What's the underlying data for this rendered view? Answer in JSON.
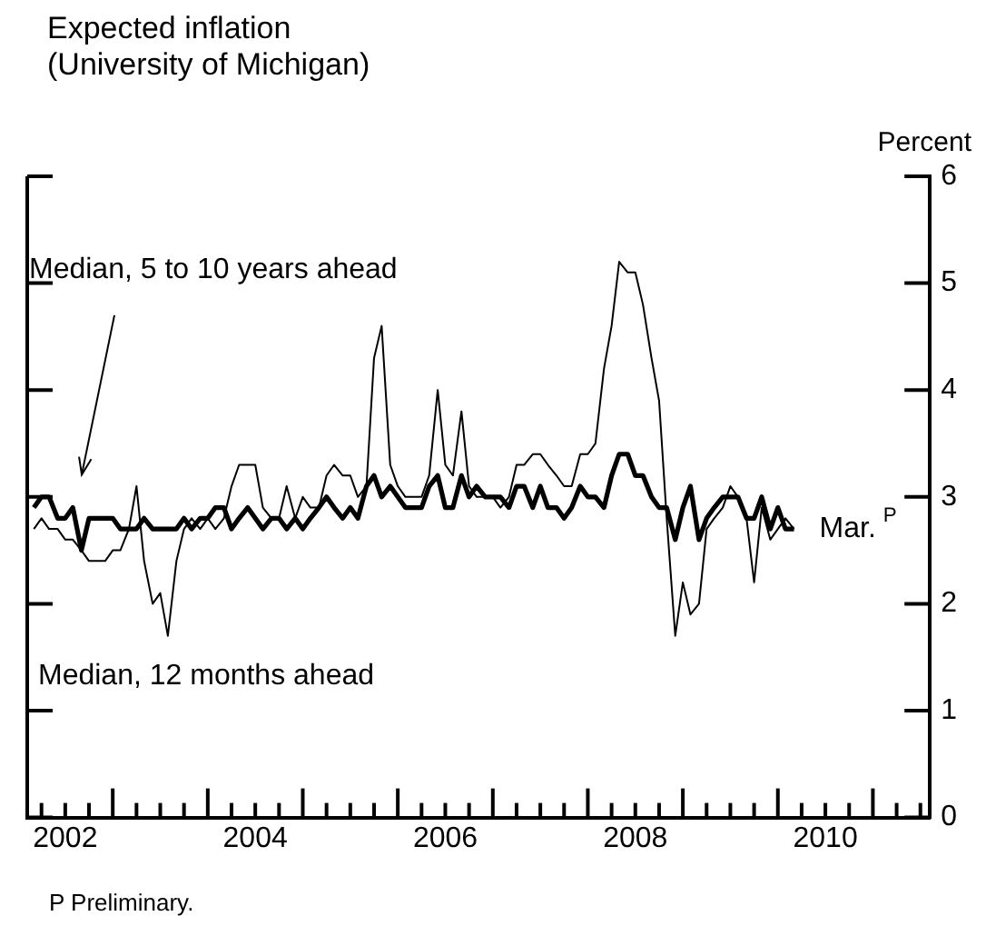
{
  "chart_data": {
    "type": "line",
    "title": "Expected inflation",
    "subtitle": "(University of Michigan)",
    "ylabel": "Percent",
    "x": [
      2002.17,
      2002.25,
      2002.33,
      2002.42,
      2002.5,
      2002.58,
      2002.67,
      2002.75,
      2002.83,
      2002.92,
      2003.0,
      2003.08,
      2003.17,
      2003.25,
      2003.33,
      2003.42,
      2003.5,
      2003.58,
      2003.67,
      2003.75,
      2003.83,
      2003.92,
      2004.0,
      2004.08,
      2004.17,
      2004.25,
      2004.33,
      2004.42,
      2004.5,
      2004.58,
      2004.67,
      2004.75,
      2004.83,
      2004.92,
      2005.0,
      2005.08,
      2005.17,
      2005.25,
      2005.33,
      2005.42,
      2005.5,
      2005.58,
      2005.67,
      2005.75,
      2005.83,
      2005.92,
      2006.0,
      2006.08,
      2006.17,
      2006.25,
      2006.33,
      2006.42,
      2006.5,
      2006.58,
      2006.67,
      2006.75,
      2006.83,
      2006.92,
      2007.0,
      2007.08,
      2007.17,
      2007.25,
      2007.33,
      2007.42,
      2007.5,
      2007.58,
      2007.67,
      2007.75,
      2007.83,
      2007.92,
      2008.0,
      2008.08,
      2008.17,
      2008.25,
      2008.33,
      2008.42,
      2008.5,
      2008.58,
      2008.67,
      2008.75,
      2008.83,
      2008.92,
      2009.0,
      2009.08,
      2009.17,
      2009.25,
      2009.33,
      2009.42,
      2009.5,
      2009.58,
      2009.67,
      2009.75,
      2009.83,
      2009.92,
      2010.0,
      2010.08,
      2010.17
    ],
    "series": [
      {
        "name": "Median, 5 to 10 years ahead",
        "color": "#000000",
        "values": [
          2.9,
          3.0,
          3.0,
          2.8,
          2.8,
          2.9,
          2.5,
          2.8,
          2.8,
          2.8,
          2.8,
          2.7,
          2.7,
          2.7,
          2.8,
          2.7,
          2.7,
          2.7,
          2.7,
          2.8,
          2.7,
          2.8,
          2.8,
          2.9,
          2.9,
          2.7,
          2.8,
          2.9,
          2.8,
          2.7,
          2.8,
          2.8,
          2.7,
          2.8,
          2.7,
          2.8,
          2.9,
          3.0,
          2.9,
          2.8,
          2.9,
          2.8,
          3.1,
          3.2,
          3.0,
          3.1,
          3.0,
          2.9,
          2.9,
          2.9,
          3.1,
          3.2,
          2.9,
          2.9,
          3.2,
          3.0,
          3.1,
          3.0,
          3.0,
          3.0,
          2.9,
          3.1,
          3.1,
          2.9,
          3.1,
          2.9,
          2.9,
          2.8,
          2.9,
          3.1,
          3.0,
          3.0,
          2.9,
          3.2,
          3.4,
          3.4,
          3.2,
          3.2,
          3.0,
          2.9,
          2.9,
          2.6,
          2.9,
          3.1,
          2.6,
          2.8,
          2.9,
          3.0,
          3.0,
          3.0,
          2.8,
          2.8,
          3.0,
          2.7,
          2.9,
          2.7,
          2.7
        ]
      },
      {
        "name": "Median, 12 months ahead",
        "color": "#000000",
        "values": [
          2.7,
          2.8,
          2.7,
          2.7,
          2.6,
          2.6,
          2.5,
          2.4,
          2.4,
          2.4,
          2.5,
          2.5,
          2.7,
          3.1,
          2.4,
          2.0,
          2.1,
          1.7,
          2.4,
          2.7,
          2.8,
          2.7,
          2.8,
          2.7,
          2.8,
          3.1,
          3.3,
          3.3,
          3.3,
          2.9,
          2.8,
          2.8,
          3.1,
          2.8,
          3.0,
          2.9,
          2.9,
          3.2,
          3.3,
          3.2,
          3.2,
          3.0,
          3.1,
          4.3,
          4.6,
          3.3,
          3.1,
          3.0,
          3.0,
          3.0,
          3.2,
          4.0,
          3.3,
          3.2,
          3.8,
          3.1,
          3.0,
          3.0,
          3.0,
          2.9,
          3.0,
          3.3,
          3.3,
          3.4,
          3.4,
          3.3,
          3.2,
          3.1,
          3.1,
          3.4,
          3.4,
          3.5,
          4.2,
          4.6,
          5.2,
          5.1,
          5.1,
          4.8,
          4.3,
          3.9,
          2.8,
          1.7,
          2.2,
          1.9,
          2.0,
          2.7,
          2.8,
          2.9,
          3.1,
          3.0,
          2.8,
          2.2,
          2.9,
          2.6,
          2.7,
          2.8,
          2.7
        ]
      }
    ],
    "xlim": [
      2002.1,
      2011.6
    ],
    "xticks": [
      {
        "value": 2002.25,
        "label": null
      },
      {
        "value": 2002.5,
        "label": "2002"
      },
      {
        "value": 2002.75,
        "label": null
      },
      {
        "value": 2003,
        "label": null
      },
      {
        "value": 2003.25,
        "label": null
      },
      {
        "value": 2003.5,
        "label": null
      },
      {
        "value": 2003.75,
        "label": null
      },
      {
        "value": 2004,
        "label": null
      },
      {
        "value": 2004.25,
        "label": null
      },
      {
        "value": 2004.5,
        "label": "2004"
      },
      {
        "value": 2004.75,
        "label": null
      },
      {
        "value": 2005,
        "label": null
      },
      {
        "value": 2005.25,
        "label": null
      },
      {
        "value": 2005.5,
        "label": null
      },
      {
        "value": 2005.75,
        "label": null
      },
      {
        "value": 2006,
        "label": null
      },
      {
        "value": 2006.25,
        "label": null
      },
      {
        "value": 2006.5,
        "label": "2006"
      },
      {
        "value": 2006.75,
        "label": null
      },
      {
        "value": 2007,
        "label": null
      },
      {
        "value": 2007.25,
        "label": null
      },
      {
        "value": 2007.5,
        "label": null
      },
      {
        "value": 2007.75,
        "label": null
      },
      {
        "value": 2008,
        "label": null
      },
      {
        "value": 2008.25,
        "label": null
      },
      {
        "value": 2008.5,
        "label": "2008"
      },
      {
        "value": 2008.75,
        "label": null
      },
      {
        "value": 2009,
        "label": null
      },
      {
        "value": 2009.25,
        "label": null
      },
      {
        "value": 2009.5,
        "label": null
      },
      {
        "value": 2009.75,
        "label": null
      },
      {
        "value": 2010,
        "label": null
      },
      {
        "value": 2010.25,
        "label": null
      },
      {
        "value": 2010.5,
        "label": "2010"
      },
      {
        "value": 2010.75,
        "label": null
      },
      {
        "value": 2011,
        "label": null
      },
      {
        "value": 2011.25,
        "label": null
      },
      {
        "value": 2011.5,
        "label": null
      }
    ],
    "ylim": [
      0,
      6
    ],
    "yticks": [
      0,
      1,
      2,
      3,
      4,
      5,
      6
    ],
    "annotations": [
      {
        "text": "Mar.$^{P}$",
        "x": 2010.17,
        "y": 2.7
      },
      "P Preliminary."
    ],
    "grid": false,
    "legend": false,
    "line_style": "solid",
    "marker": "none"
  }
}
